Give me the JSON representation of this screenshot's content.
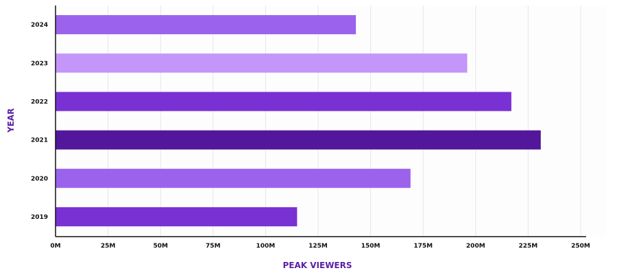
{
  "chart_data": {
    "type": "bar",
    "orientation": "horizontal",
    "categories": [
      "2024",
      "2023",
      "2022",
      "2021",
      "2020",
      "2019"
    ],
    "values": [
      143,
      196,
      217,
      231,
      169,
      115
    ],
    "value_unit": "M",
    "xlabel": "PEAK VIEWERS",
    "ylabel": "YEAR",
    "xlim": [
      0,
      250
    ],
    "x_ticks": [
      "0M",
      "25M",
      "50M",
      "75M",
      "100M",
      "125M",
      "150M",
      "175M",
      "200M",
      "225M",
      "250M"
    ],
    "grid": "vertical",
    "bar_colors": [
      "#9b63ec",
      "#c496fa",
      "#7a31d4",
      "#52179b",
      "#9b63ec",
      "#7a31d4"
    ]
  }
}
